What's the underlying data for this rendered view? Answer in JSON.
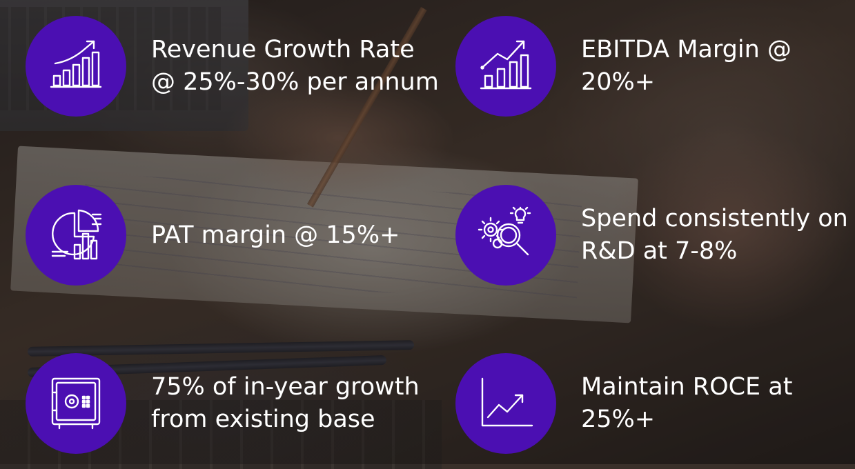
{
  "colors": {
    "circle": "#4b0fb2",
    "text": "#ffffff"
  },
  "items": [
    {
      "icon": "revenue-growth-chart-icon",
      "lines": [
        "Revenue Growth Rate",
        "@ 25%-30% per annum"
      ]
    },
    {
      "icon": "ebitda-bar-chart-icon",
      "lines": [
        "EBITDA Margin @",
        "20%+"
      ]
    },
    {
      "icon": "pat-analytics-icon",
      "lines": [
        "PAT margin @ 15%+"
      ]
    },
    {
      "icon": "rnd-gears-magnifier-icon",
      "lines": [
        "Spend consistently on",
        "R&D at 7-8%"
      ]
    },
    {
      "icon": "safe-vault-icon",
      "lines": [
        "75% of in-year growth",
        "from existing base"
      ]
    },
    {
      "icon": "roce-trend-line-icon",
      "lines": [
        "Maintain ROCE at",
        "25%+"
      ]
    }
  ]
}
